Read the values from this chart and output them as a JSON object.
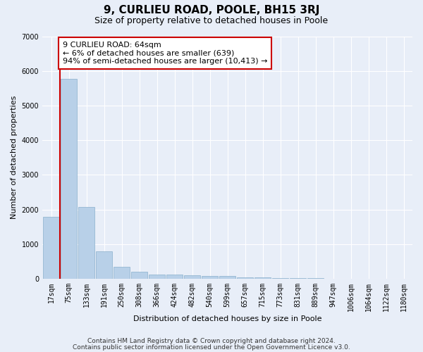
{
  "title": "9, CURLIEU ROAD, POOLE, BH15 3RJ",
  "subtitle": "Size of property relative to detached houses in Poole",
  "xlabel": "Distribution of detached houses by size in Poole",
  "ylabel": "Number of detached properties",
  "categories": [
    "17sqm",
    "75sqm",
    "133sqm",
    "191sqm",
    "250sqm",
    "308sqm",
    "366sqm",
    "424sqm",
    "482sqm",
    "540sqm",
    "599sqm",
    "657sqm",
    "715sqm",
    "773sqm",
    "831sqm",
    "889sqm",
    "947sqm",
    "1006sqm",
    "1064sqm",
    "1122sqm",
    "1180sqm"
  ],
  "values": [
    1780,
    5780,
    2080,
    800,
    340,
    200,
    120,
    120,
    100,
    80,
    80,
    30,
    30,
    20,
    15,
    10,
    8,
    5,
    5,
    3,
    3
  ],
  "bar_color": "#b8d0e8",
  "bar_edge_color": "#8ab0cc",
  "vline_x": 0.5,
  "vline_color": "#cc0000",
  "annotation_text": "9 CURLIEU ROAD: 64sqm\n← 6% of detached houses are smaller (639)\n94% of semi-detached houses are larger (10,413) →",
  "annotation_box_facecolor": "#ffffff",
  "annotation_box_edgecolor": "#cc0000",
  "ylim": [
    0,
    7000
  ],
  "yticks": [
    0,
    1000,
    2000,
    3000,
    4000,
    5000,
    6000,
    7000
  ],
  "footer_line1": "Contains HM Land Registry data © Crown copyright and database right 2024.",
  "footer_line2": "Contains public sector information licensed under the Open Government Licence v3.0.",
  "bg_color": "#e8eef8",
  "plot_bg_color": "#e8eef8",
  "grid_color": "#ffffff",
  "title_fontsize": 11,
  "subtitle_fontsize": 9,
  "axis_label_fontsize": 8,
  "tick_fontsize": 7,
  "footer_fontsize": 6.5,
  "annotation_fontsize": 8
}
